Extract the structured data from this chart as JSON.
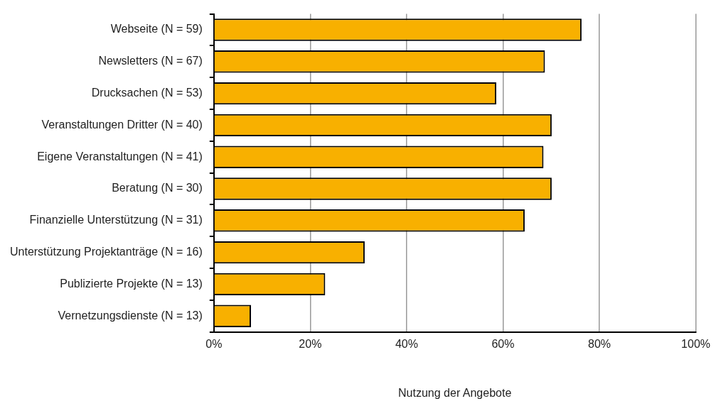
{
  "chart_data": {
    "type": "bar",
    "orientation": "horizontal",
    "xlabel": "Nutzung der Angebote",
    "categories": [
      "Webseite (N = 59)",
      "Newsletters (N = 67)",
      "Drucksachen (N = 53)",
      "Veranstaltungen Dritter (N = 40)",
      "Eigene Veranstaltungen (N = 41)",
      "Beratung (N = 30)",
      "Finanzielle Unterstützung (N = 31)",
      "Unterstützung Projektanträge (N = 16)",
      "Publizierte Projekte (N = 13)",
      "Vernetzungsdienste (N = 13)"
    ],
    "values": [
      76.3,
      68.7,
      58.6,
      70.1,
      68.4,
      70.1,
      64.5,
      31.3,
      23.1,
      7.7
    ],
    "color": "#f8b000",
    "xlim": [
      0,
      100
    ],
    "xticks": [
      {
        "value": 0,
        "label": "0%"
      },
      {
        "value": 20,
        "label": "20%"
      },
      {
        "value": 40,
        "label": "40%"
      },
      {
        "value": 60,
        "label": "60%"
      },
      {
        "value": 80,
        "label": "80%"
      },
      {
        "value": 100,
        "label": "100%"
      }
    ],
    "grid": "x",
    "legend": false
  }
}
